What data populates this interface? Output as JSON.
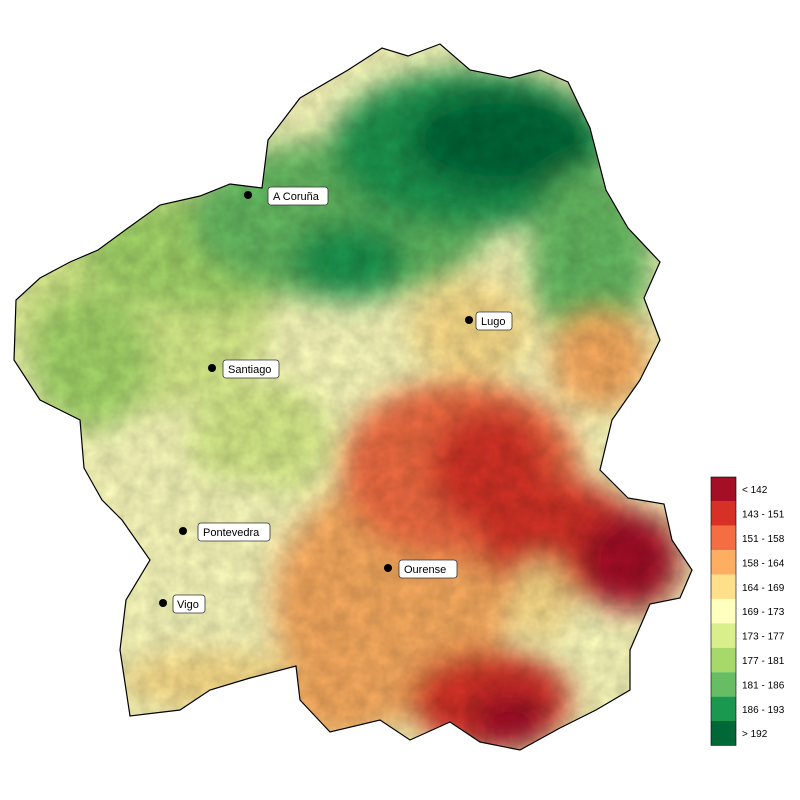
{
  "map": {
    "cities": [
      {
        "name": "A Coruña"
      },
      {
        "name": "Lugo"
      },
      {
        "name": "Santiago"
      },
      {
        "name": "Pontevedra"
      },
      {
        "name": "Ourense"
      },
      {
        "name": "Vigo"
      }
    ]
  },
  "legend": {
    "classes": [
      {
        "label": "< 142",
        "color": "#a50f26"
      },
      {
        "label": "143 - 151",
        "color": "#d73027"
      },
      {
        "label": "151 - 158",
        "color": "#f46d43"
      },
      {
        "label": "158 - 164",
        "color": "#fdae61"
      },
      {
        "label": "164 - 169",
        "color": "#fee08b"
      },
      {
        "label": "169 - 173",
        "color": "#ffffbf"
      },
      {
        "label": "173 - 177",
        "color": "#d9ef8b"
      },
      {
        "label": "177 - 181",
        "color": "#a6d96a"
      },
      {
        "label": "181 - 186",
        "color": "#66bd63"
      },
      {
        "label": "186 - 193",
        "color": "#1a9850"
      },
      {
        "label": "> 192",
        "color": "#006837"
      }
    ]
  }
}
